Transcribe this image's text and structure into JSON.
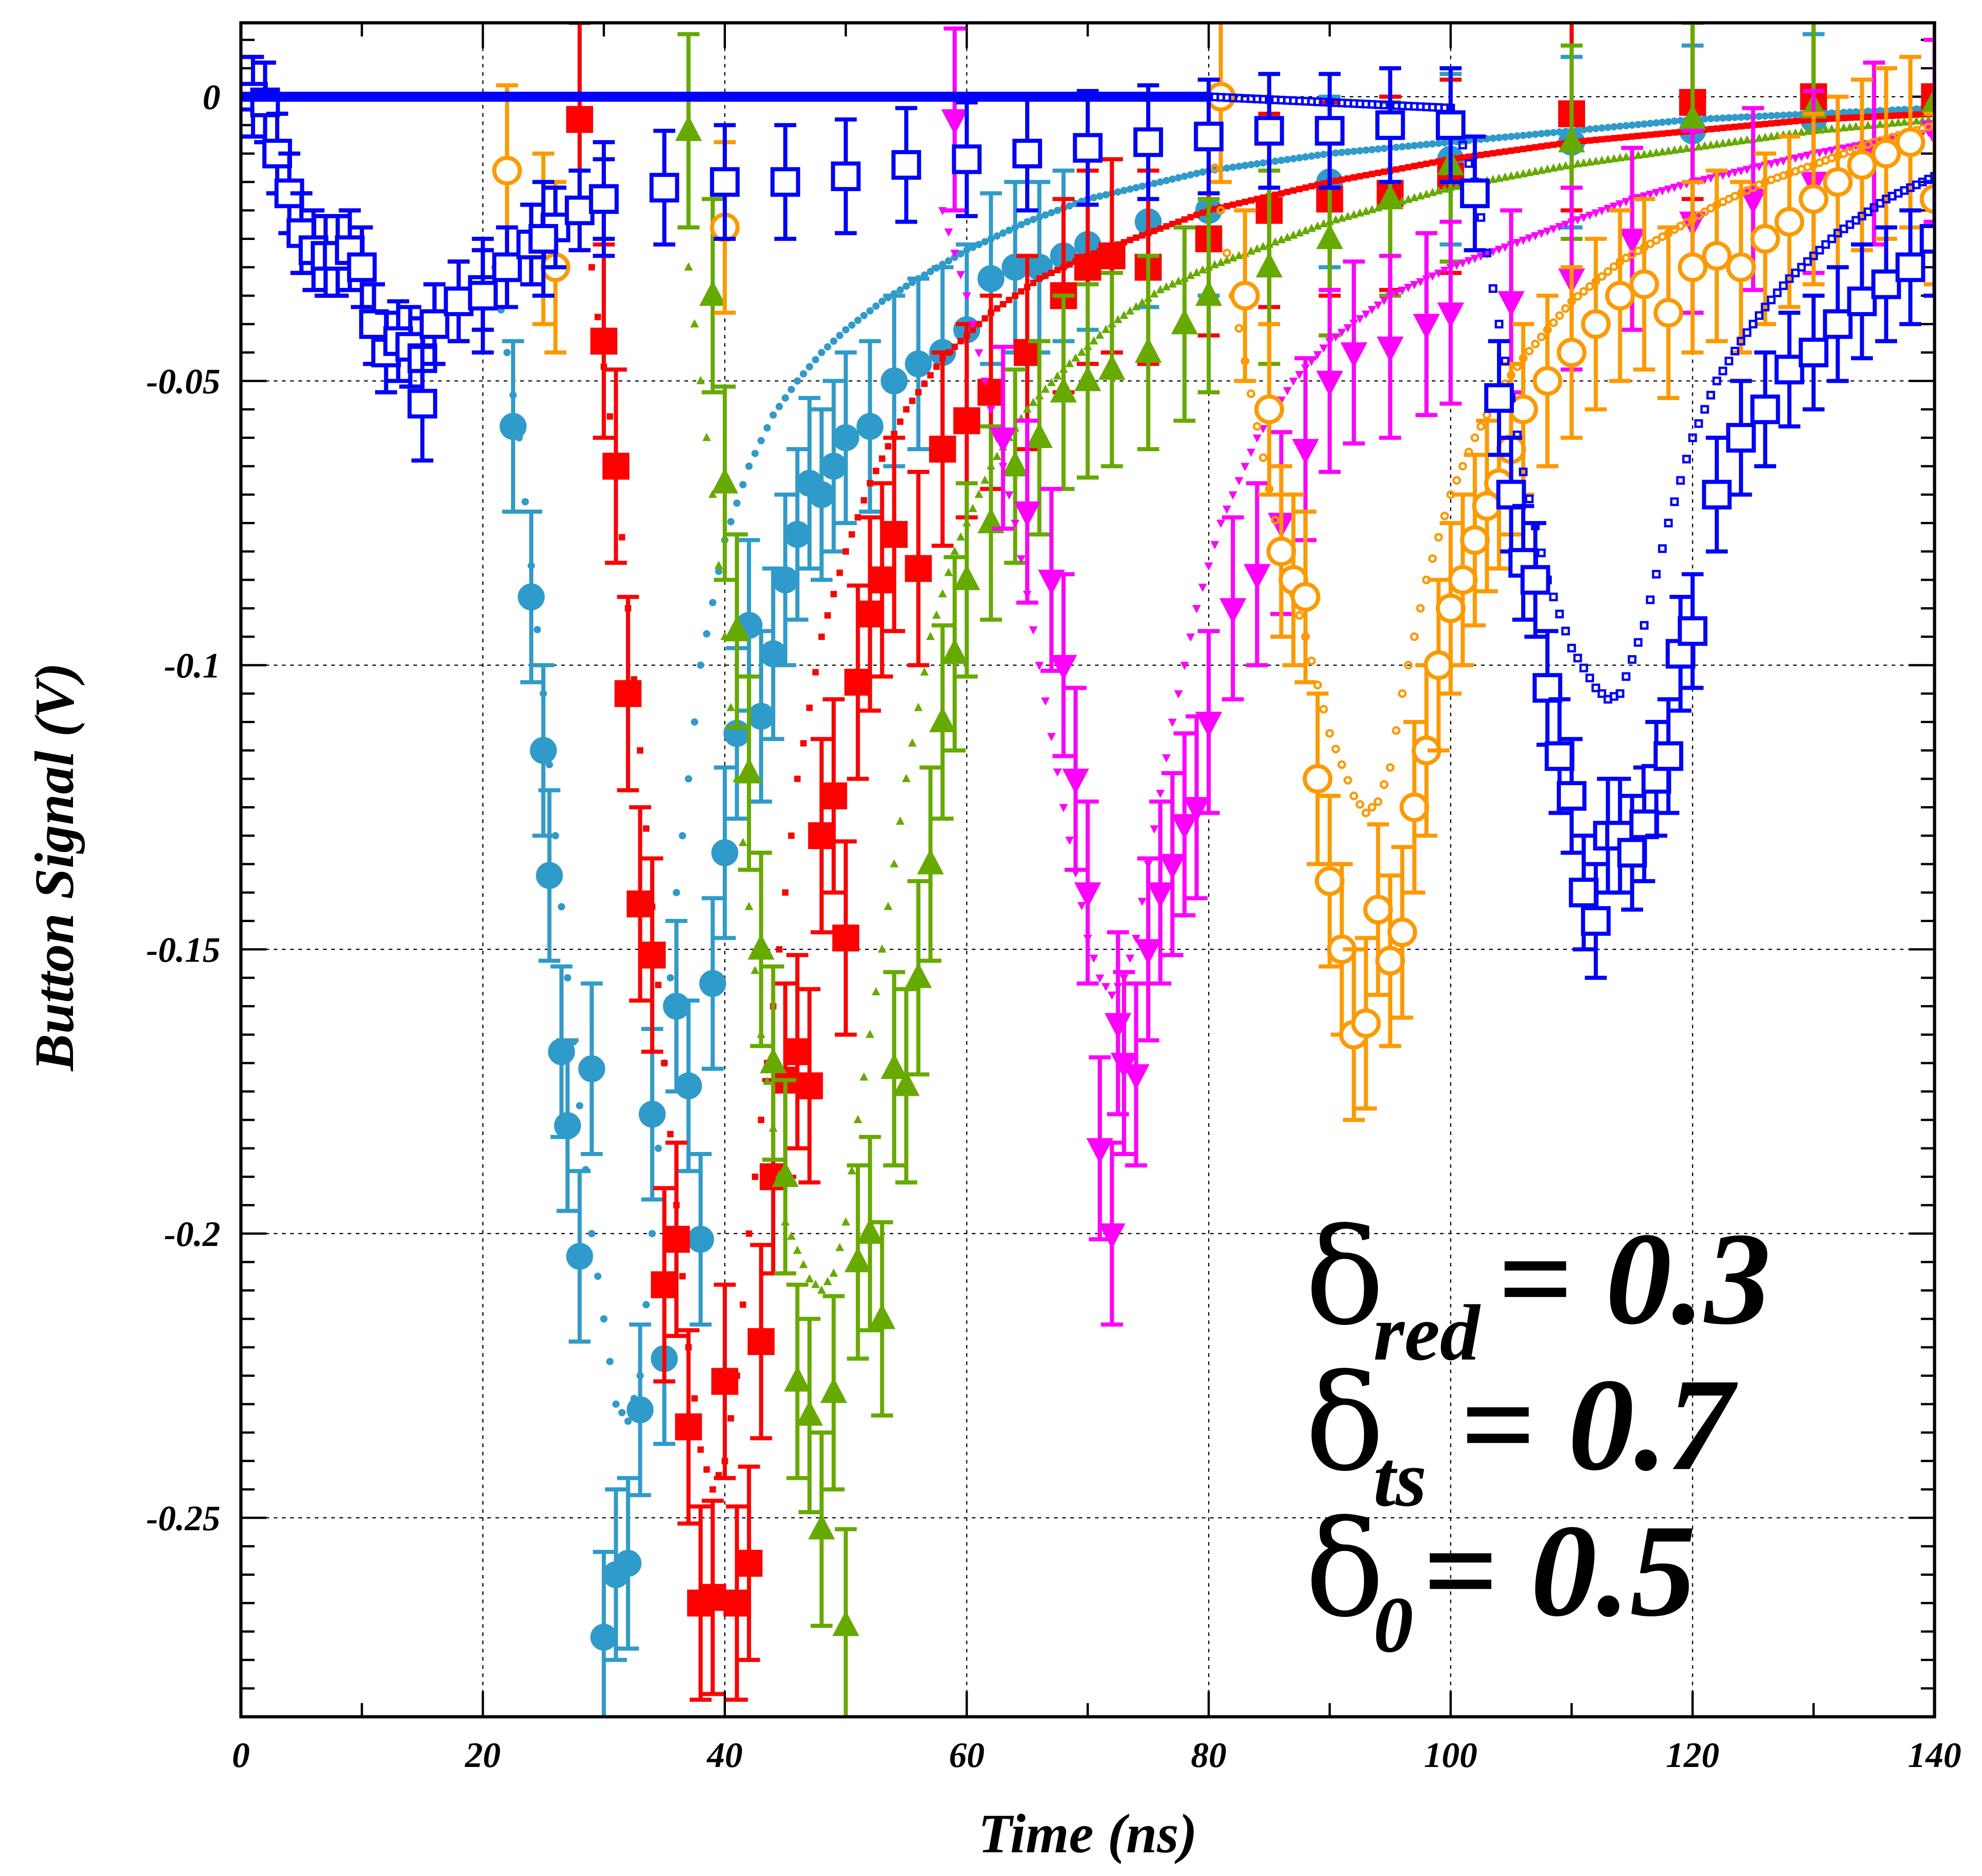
{
  "chart_data": {
    "type": "scatter",
    "title": "",
    "xlabel": "Time (ns)",
    "ylabel": "Button Signal (V)",
    "xlim": [
      0,
      140
    ],
    "ylim": [
      -0.285,
      0.013
    ],
    "x_ticks": [
      0,
      20,
      40,
      60,
      80,
      100,
      120,
      140
    ],
    "x_tick_labels": [
      "0",
      "20",
      "40",
      "60",
      "80",
      "100",
      "120",
      "140"
    ],
    "y_ticks": [
      0,
      -0.05,
      -0.1,
      -0.15,
      -0.2,
      -0.25
    ],
    "y_tick_labels": [
      "0",
      "-0.05",
      "-0.1",
      "-0.15",
      "-0.2",
      "-0.25"
    ],
    "grid": true,
    "annotations": [
      {
        "symbol": "δ",
        "sub": "red",
        "text": "= 0.3"
      },
      {
        "symbol": "δ",
        "sub": "ts",
        "text": "= 0.7"
      },
      {
        "symbol": "δ",
        "sub": "0",
        "text": "= 0.5"
      }
    ],
    "common_precursor": {
      "x": [
        1,
        2,
        3,
        4,
        5,
        6,
        7,
        8,
        9,
        10,
        11,
        12,
        13,
        14,
        15,
        16,
        18,
        20,
        22,
        24,
        26,
        28,
        30
      ],
      "y": [
        0,
        -0.001,
        -0.01,
        -0.017,
        -0.024,
        -0.027,
        -0.028,
        -0.028,
        -0.027,
        -0.03,
        -0.04,
        -0.045,
        -0.043,
        -0.044,
        -0.046,
        -0.04,
        -0.036,
        -0.034,
        -0.03,
        -0.026,
        -0.023,
        -0.02,
        -0.018
      ]
    },
    "series": [
      {
        "color": "#2E9BCB",
        "marker": "circle-filled",
        "measured": {
          "x": [
            22.5,
            24,
            25,
            25.5,
            26.5,
            27,
            28,
            29,
            30,
            31,
            32,
            33,
            34,
            35,
            36,
            37,
            38,
            39,
            40,
            41,
            42,
            43,
            44,
            45,
            46,
            47,
            48,
            49,
            50,
            52,
            54,
            56,
            58,
            60,
            62,
            64,
            66,
            68,
            70,
            75,
            80,
            90,
            100,
            110,
            120,
            130
          ],
          "y": [
            -0.058,
            -0.088,
            -0.115,
            -0.137,
            -0.168,
            -0.181,
            -0.204,
            -0.171,
            -0.271,
            -0.26,
            -0.258,
            -0.231,
            -0.179,
            -0.222,
            -0.16,
            -0.174,
            -0.201,
            -0.156,
            -0.133,
            -0.112,
            -0.093,
            -0.109,
            -0.098,
            -0.085,
            -0.077,
            -0.068,
            -0.07,
            -0.065,
            -0.06,
            -0.058,
            -0.05,
            -0.047,
            -0.045,
            -0.041,
            -0.032,
            -0.03,
            -0.03,
            -0.028,
            -0.026,
            -0.022,
            -0.02,
            -0.015,
            -0.011,
            -0.008,
            -0.006,
            -0.004
          ],
          "err": 0.015
        },
        "model": {
          "x": [
            21,
            23,
            25,
            27,
            29,
            31,
            32,
            33,
            34,
            35,
            36,
            38,
            40,
            42,
            44,
            46,
            48,
            50,
            53,
            56,
            60,
            65,
            70,
            80,
            90,
            100,
            110,
            120,
            130,
            140
          ],
          "y": [
            -0.03,
            -0.06,
            -0.105,
            -0.155,
            -0.2,
            -0.23,
            -0.233,
            -0.225,
            -0.2,
            -0.17,
            -0.14,
            -0.1,
            -0.078,
            -0.065,
            -0.056,
            -0.05,
            -0.045,
            -0.041,
            -0.036,
            -0.032,
            -0.027,
            -0.022,
            -0.018,
            -0.013,
            -0.01,
            -0.008,
            -0.006,
            -0.004,
            -0.003,
            -0.002
          ]
        }
      },
      {
        "color": "#FF0000",
        "marker": "square-filled",
        "measured": {
          "x": [
            28,
            30,
            31,
            32,
            33,
            34,
            35,
            36,
            37,
            38,
            39,
            40,
            41,
            42,
            43,
            44,
            45,
            46,
            47,
            48,
            49,
            50,
            51,
            52,
            53,
            54,
            56,
            58,
            60,
            62,
            65,
            68,
            70,
            72,
            75,
            80,
            85,
            90,
            95,
            100,
            110,
            120,
            130,
            140
          ],
          "y": [
            -0.004,
            -0.043,
            -0.065,
            -0.105,
            -0.142,
            -0.151,
            -0.209,
            -0.201,
            -0.234,
            -0.265,
            -0.264,
            -0.226,
            -0.265,
            -0.258,
            -0.219,
            -0.19,
            -0.173,
            -0.168,
            -0.174,
            -0.13,
            -0.123,
            -0.148,
            -0.103,
            -0.091,
            -0.085,
            -0.077,
            -0.083,
            -0.062,
            -0.057,
            -0.052,
            -0.045,
            -0.035,
            -0.03,
            -0.028,
            -0.03,
            -0.025,
            -0.02,
            -0.018,
            -0.017,
            -0.014,
            -0.003,
            -0.001,
            0,
            0
          ],
          "err": 0.017
        },
        "model": {
          "x": [
            29,
            31,
            33,
            35,
            37,
            38,
            39,
            40,
            41,
            42,
            44,
            46,
            48,
            50,
            52,
            55,
            58,
            62,
            66,
            70,
            75,
            80,
            90,
            100,
            110,
            120,
            130,
            140
          ],
          "y": [
            -0.03,
            -0.065,
            -0.115,
            -0.17,
            -0.22,
            -0.238,
            -0.245,
            -0.24,
            -0.225,
            -0.2,
            -0.16,
            -0.12,
            -0.095,
            -0.08,
            -0.068,
            -0.055,
            -0.046,
            -0.038,
            -0.032,
            -0.028,
            -0.024,
            -0.02,
            -0.015,
            -0.011,
            -0.008,
            -0.006,
            -0.004,
            -0.003
          ]
        }
      },
      {
        "color": "#66AA00",
        "marker": "triangle-up-filled",
        "measured": {
          "x": [
            37,
            39,
            40,
            41,
            42,
            43,
            44,
            45,
            46,
            47,
            48,
            49,
            50,
            51,
            52,
            53,
            54,
            55,
            56,
            57,
            58,
            59,
            60,
            62,
            64,
            66,
            68,
            70,
            72,
            75,
            78,
            80,
            85,
            90,
            95,
            100,
            110,
            120,
            130,
            140
          ],
          "y": [
            -0.006,
            -0.035,
            -0.068,
            -0.094,
            -0.119,
            -0.15,
            -0.17,
            -0.19,
            -0.226,
            -0.232,
            -0.252,
            -0.228,
            -0.269,
            -0.205,
            -0.2,
            -0.215,
            -0.171,
            -0.174,
            -0.155,
            -0.135,
            -0.11,
            -0.098,
            -0.085,
            -0.075,
            -0.065,
            -0.06,
            -0.052,
            -0.05,
            -0.048,
            -0.045,
            -0.04,
            -0.035,
            -0.03,
            -0.025,
            -0.018,
            -0.012,
            -0.008,
            -0.004,
            -0.002,
            -0.001
          ],
          "err": 0.017
        },
        "model": {
          "x": [
            37,
            39,
            41,
            43,
            45,
            47,
            48,
            49,
            50,
            51,
            53,
            55,
            57,
            59,
            62,
            65,
            68,
            72,
            76,
            80,
            90,
            100,
            110,
            120,
            130,
            140
          ],
          "y": [
            -0.03,
            -0.07,
            -0.12,
            -0.165,
            -0.198,
            -0.208,
            -0.21,
            -0.207,
            -0.198,
            -0.18,
            -0.15,
            -0.12,
            -0.095,
            -0.08,
            -0.065,
            -0.055,
            -0.048,
            -0.04,
            -0.034,
            -0.03,
            -0.022,
            -0.016,
            -0.012,
            -0.009,
            -0.006,
            -0.004
          ]
        }
      },
      {
        "color": "#FF00FF",
        "marker": "triangle-down-filled",
        "measured": {
          "x": [
            59,
            63,
            65,
            67,
            68,
            69,
            70,
            71,
            72,
            72.5,
            73,
            74,
            75,
            76,
            77,
            78,
            79,
            80,
            82,
            84,
            86,
            88,
            90,
            92,
            95,
            98,
            100,
            105,
            110,
            115,
            120,
            125,
            130,
            135,
            140
          ],
          "y": [
            -0.004,
            -0.06,
            -0.073,
            -0.085,
            -0.1,
            -0.12,
            -0.14,
            -0.185,
            -0.2,
            -0.163,
            -0.17,
            -0.172,
            -0.15,
            -0.14,
            -0.135,
            -0.128,
            -0.125,
            -0.11,
            -0.09,
            -0.084,
            -0.075,
            -0.062,
            -0.05,
            -0.045,
            -0.044,
            -0.04,
            -0.038,
            -0.036,
            -0.032,
            -0.025,
            -0.022,
            -0.018,
            -0.015,
            -0.01,
            -0.006
          ],
          "err": 0.016
        },
        "model": {
          "x": [
            58,
            60,
            62,
            64,
            66,
            68,
            70,
            71,
            72,
            73,
            74,
            75,
            77,
            79,
            81,
            84,
            87,
            90,
            95,
            100,
            105,
            110,
            115,
            120,
            130,
            140
          ],
          "y": [
            -0.02,
            -0.035,
            -0.055,
            -0.075,
            -0.1,
            -0.125,
            -0.148,
            -0.155,
            -0.158,
            -0.155,
            -0.148,
            -0.135,
            -0.11,
            -0.09,
            -0.075,
            -0.06,
            -0.05,
            -0.043,
            -0.035,
            -0.03,
            -0.026,
            -0.022,
            -0.018,
            -0.015,
            -0.01,
            -0.006
          ]
        }
      },
      {
        "color": "#FF9900",
        "marker": "circle-open",
        "measured": {
          "x": [
            22,
            25,
            26,
            40,
            81,
            83,
            85,
            86,
            87,
            88,
            89,
            90,
            91,
            92,
            93,
            94,
            95,
            96,
            97,
            98,
            99,
            100,
            101,
            102,
            103,
            104,
            105,
            106,
            108,
            110,
            112,
            114,
            116,
            118,
            120,
            122,
            124,
            126,
            128,
            130,
            132,
            134,
            136,
            138,
            140
          ],
          "y": [
            -0.013,
            -0.025,
            -0.03,
            -0.023,
            0,
            -0.035,
            -0.055,
            -0.08,
            -0.085,
            -0.088,
            -0.12,
            -0.138,
            -0.15,
            -0.165,
            -0.163,
            -0.143,
            -0.152,
            -0.147,
            -0.125,
            -0.115,
            -0.1,
            -0.09,
            -0.085,
            -0.078,
            -0.072,
            -0.068,
            -0.062,
            -0.055,
            -0.05,
            -0.045,
            -0.04,
            -0.035,
            -0.033,
            -0.038,
            -0.03,
            -0.028,
            -0.03,
            -0.025,
            -0.022,
            -0.018,
            -0.015,
            -0.012,
            -0.01,
            -0.008,
            -0.018
          ],
          "err": 0.015
        },
        "model": {
          "x": [
            80,
            82,
            84,
            86,
            88,
            90,
            92,
            93,
            94,
            95,
            96,
            98,
            100,
            102,
            104,
            106,
            108,
            110,
            114,
            118,
            122,
            126,
            130,
            135,
            140
          ],
          "y": [
            -0.005,
            -0.035,
            -0.058,
            -0.08,
            -0.095,
            -0.112,
            -0.123,
            -0.126,
            -0.124,
            -0.118,
            -0.105,
            -0.085,
            -0.07,
            -0.06,
            -0.052,
            -0.046,
            -0.041,
            -0.036,
            -0.029,
            -0.024,
            -0.019,
            -0.015,
            -0.012,
            -0.008,
            -0.005
          ]
        }
      },
      {
        "color": "#0000FF",
        "marker": "square-open",
        "measured": {
          "x": [
            15,
            20,
            25,
            30,
            35,
            40,
            45,
            50,
            55,
            60,
            65,
            70,
            75,
            80,
            85,
            90,
            95,
            100,
            102,
            104,
            105,
            106,
            107,
            108,
            109,
            110,
            111,
            112,
            113,
            114,
            115,
            116,
            117,
            118,
            119,
            120,
            122,
            124,
            126,
            128,
            130,
            132,
            134,
            136,
            138,
            140
          ],
          "y": [
            -0.054,
            -0.035,
            -0.025,
            -0.018,
            -0.016,
            -0.015,
            -0.015,
            -0.014,
            -0.012,
            -0.011,
            -0.01,
            -0.009,
            -0.008,
            -0.007,
            -0.006,
            -0.006,
            -0.005,
            -0.005,
            -0.017,
            -0.053,
            -0.07,
            -0.082,
            -0.085,
            -0.104,
            -0.116,
            -0.123,
            -0.14,
            -0.145,
            -0.13,
            -0.13,
            -0.133,
            -0.128,
            -0.12,
            -0.116,
            -0.098,
            -0.094,
            -0.07,
            -0.06,
            -0.055,
            -0.048,
            -0.045,
            -0.04,
            -0.036,
            -0.033,
            -0.03,
            -0.025
          ],
          "err": 0.01
        },
        "model": {
          "x": [
            0,
            80,
            100,
            102,
            104,
            106,
            108,
            110,
            112,
            113,
            114,
            116,
            118,
            120,
            122,
            124,
            126,
            128,
            130,
            132,
            134,
            136,
            138,
            140
          ],
          "y": [
            0,
            0,
            -0.002,
            -0.015,
            -0.04,
            -0.066,
            -0.085,
            -0.097,
            -0.104,
            -0.106,
            -0.105,
            -0.093,
            -0.075,
            -0.06,
            -0.05,
            -0.043,
            -0.037,
            -0.032,
            -0.028,
            -0.024,
            -0.021,
            -0.018,
            -0.016,
            -0.014
          ]
        }
      }
    ]
  }
}
